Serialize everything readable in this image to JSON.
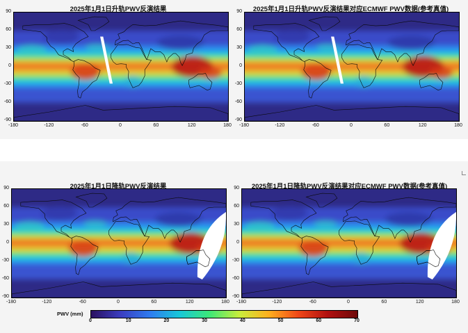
{
  "chart_data": [
    {
      "type": "heatmap",
      "title": "2025年1月1日升轨PWV反演结果",
      "xlim": [
        -180,
        180
      ],
      "ylim": [
        -90,
        90
      ],
      "xticks": [
        "-180",
        "-120",
        "-60",
        "0",
        "60",
        "120",
        "180"
      ],
      "yticks": [
        "90",
        "60",
        "30",
        "0",
        "-30",
        "-60",
        "-90"
      ],
      "gap": "orbit-strip"
    },
    {
      "type": "heatmap",
      "title": "2025年1月1日升轨PWV反演结果对应ECMWF PWV数据(参考真值)",
      "xlim": [
        -180,
        180
      ],
      "ylim": [
        -90,
        90
      ],
      "xticks": [
        "-180",
        "-120",
        "-60",
        "0",
        "60",
        "120",
        "180"
      ],
      "yticks": [
        "90",
        "60",
        "30",
        "0",
        "-30",
        "-60",
        "-90"
      ],
      "gap": "orbit-strip"
    },
    {
      "type": "heatmap",
      "title": "2025年1月1日降轨PWV反演结果",
      "xlim": [
        -180,
        180
      ],
      "ylim": [
        -90,
        90
      ],
      "xticks": [
        "-180",
        "-120",
        "-60",
        "0",
        "60",
        "120",
        "180"
      ],
      "yticks": [
        "90",
        "60",
        "30",
        "0",
        "-30",
        "-60",
        "-90"
      ],
      "gap": "sun-glint-region"
    },
    {
      "type": "heatmap",
      "title": "2025年1月1日降轨PWV反演结果对应ECMWF PWV数据(参考真值)",
      "xlim": [
        -180,
        180
      ],
      "ylim": [
        -90,
        90
      ],
      "xticks": [
        "-180",
        "-120",
        "-60",
        "0",
        "60",
        "120",
        "180"
      ],
      "yticks": [
        "90",
        "60",
        "30",
        "0",
        "-30",
        "-60",
        "-90"
      ],
      "gap": "sun-glint-region"
    }
  ],
  "colorbar": {
    "label": "PWV (mm)",
    "range": [
      0,
      70
    ],
    "ticks": [
      "0",
      "10",
      "20",
      "30",
      "40",
      "50",
      "60",
      "70"
    ],
    "colors": [
      "#2b1160",
      "#3b3ec0",
      "#2f7cf0",
      "#18c8d8",
      "#3ce878",
      "#c8ee3c",
      "#ffb01e",
      "#f04818",
      "#b01010",
      "#6e0808"
    ]
  }
}
